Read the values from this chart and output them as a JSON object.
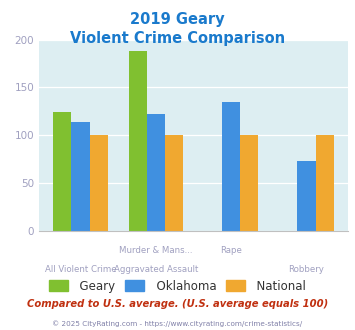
{
  "title_line1": "2019 Geary",
  "title_line2": "Violent Crime Comparison",
  "cat_labels_top": [
    "",
    "Murder & Mans...",
    "Rape",
    ""
  ],
  "cat_labels_bottom": [
    "All Violent Crime",
    "Aggravated Assault",
    "",
    "Robbery"
  ],
  "series": {
    "Geary": [
      124,
      188,
      0,
      0
    ],
    "Oklahoma": [
      114,
      122,
      135,
      73
    ],
    "National": [
      100,
      100,
      100,
      100
    ]
  },
  "colors": {
    "Geary": "#80c030",
    "Oklahoma": "#4090e0",
    "National": "#f0a830"
  },
  "ylim": [
    0,
    200
  ],
  "yticks": [
    0,
    50,
    100,
    150,
    200
  ],
  "plot_bg": "#ddeef2",
  "title_color": "#1a7acc",
  "tick_color": "#a0a0c0",
  "footer_text": "Compared to U.S. average. (U.S. average equals 100)",
  "footer_color": "#c03010",
  "copyright_text": "© 2025 CityRating.com - https://www.cityrating.com/crime-statistics/",
  "copyright_color": "#8080a8",
  "legend_text_color": "#333333"
}
